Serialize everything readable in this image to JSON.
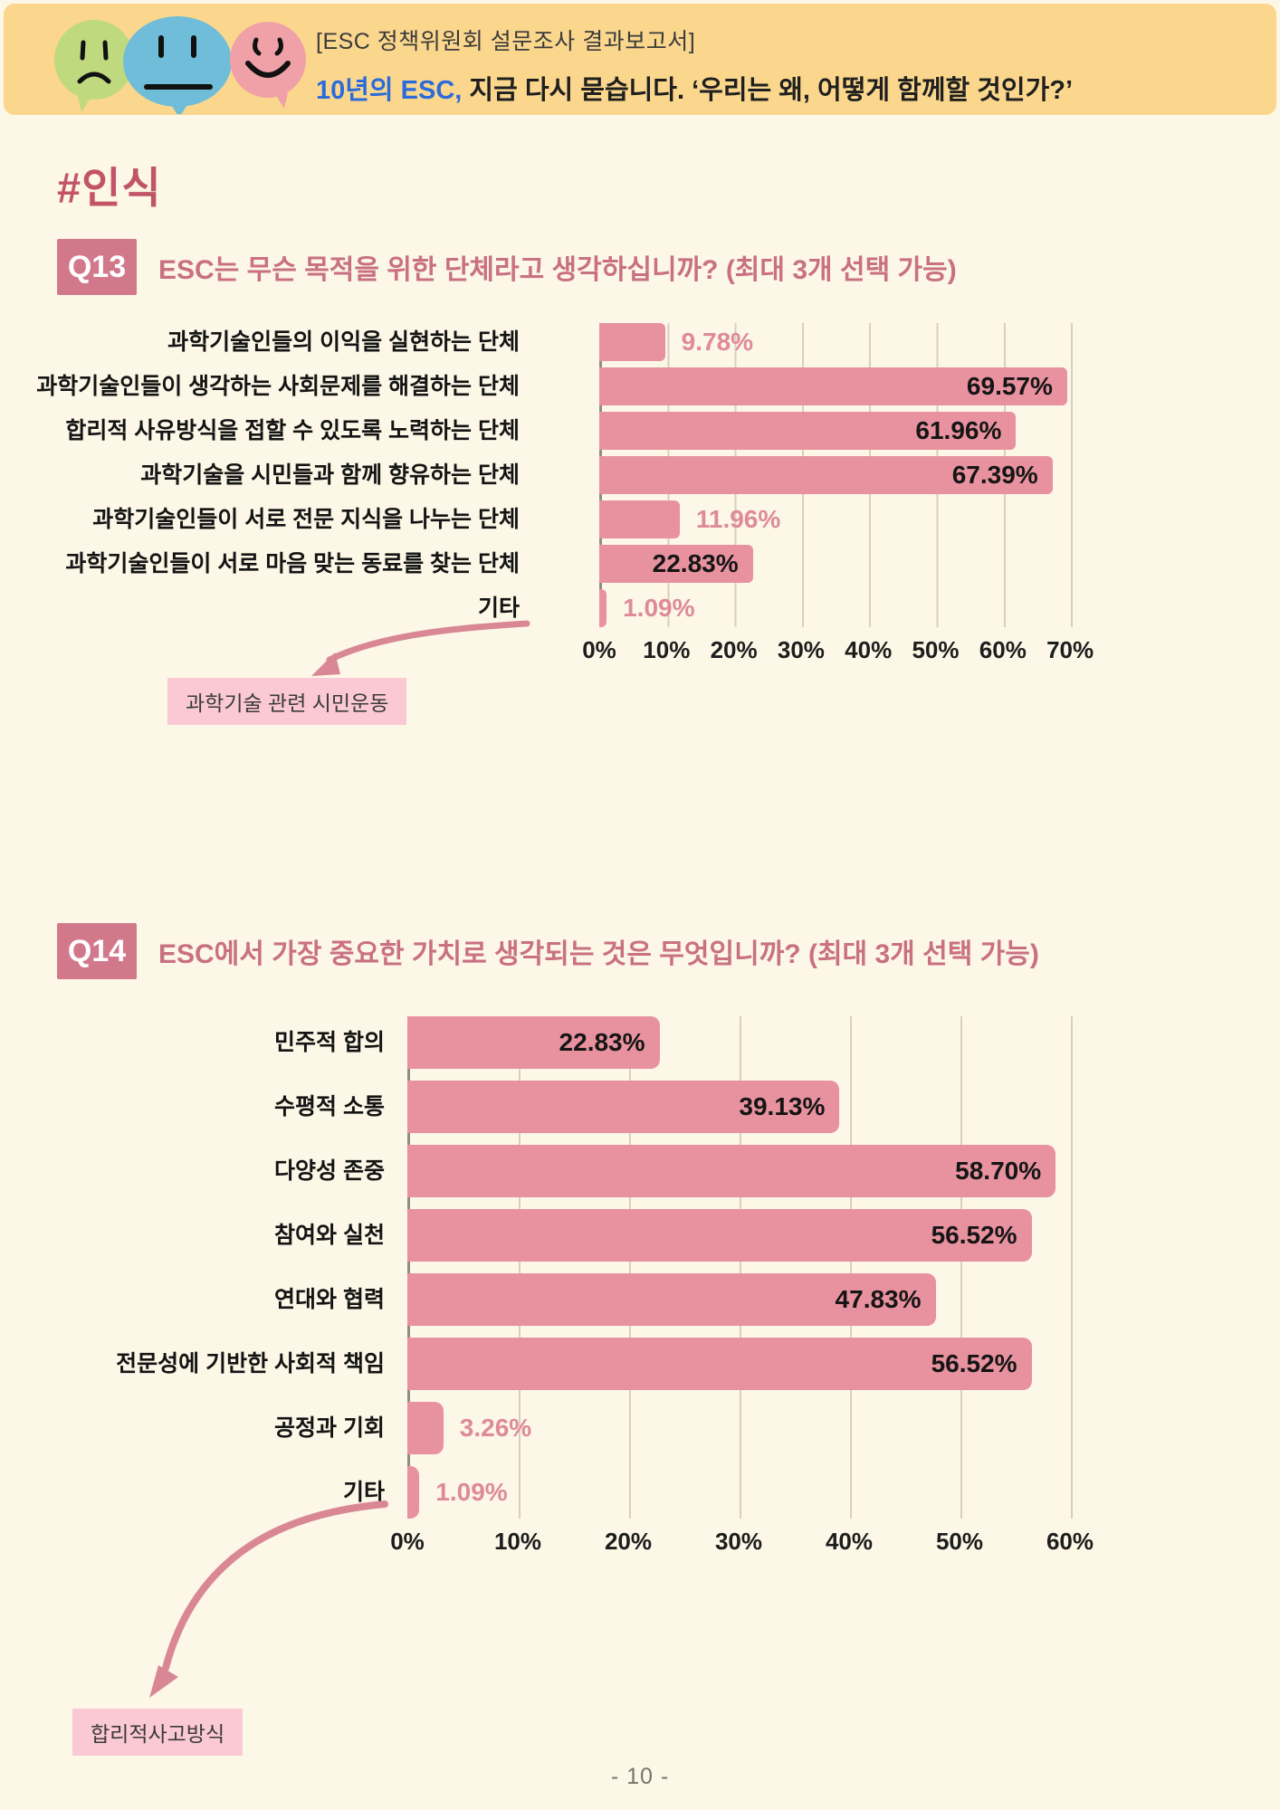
{
  "header": {
    "kicker": "[ESC 정책위원회 설문조사 결과보고서]",
    "title_highlight": "10년의 ESC,",
    "title_rest": " 지금 다시 묻습니다. ‘우리는 왜, 어떻게 함께할 것인가?’",
    "colors": {
      "band": "#FBD78D",
      "highlight": "#2B6BDA",
      "bubble_green": "#BFD97E",
      "bubble_blue": "#6FBDD8",
      "bubble_pink": "#F0A1A8"
    },
    "bubble_icons": [
      "sad-face-bubble",
      "neutral-face-bubble",
      "happy-face-bubble"
    ]
  },
  "section": {
    "heading": "#인식",
    "color": "#C25468"
  },
  "questions": [
    {
      "badge": "Q13",
      "text": "ESC는 무슨 목적을 위한 단체라고 생각하십니까? (최대 3개 선택 가능)",
      "other_note": "과학기술 관련 시민운동"
    },
    {
      "badge": "Q14",
      "text": "ESC에서 가장 중요한 가치로 생각되는 것은 무엇입니까? (최대 3개 선택 가능)",
      "other_note": "합리적사고방식"
    }
  ],
  "chart_data": [
    {
      "type": "bar",
      "orientation": "horizontal",
      "question": "Q13",
      "categories": [
        "과학기술인들의 이익을 실현하는 단체",
        "과학기술인들이 생각하는 사회문제를 해결하는 단체",
        "합리적 사유방식을 접할 수 있도록 노력하는 단체",
        "과학기술을 시민들과 함께 향유하는 단체",
        "과학기술인들이 서로 전문 지식을 나누는 단체",
        "과학기술인들이 서로 마음 맞는 동료를 찾는 단체",
        "기타"
      ],
      "values": [
        9.78,
        69.57,
        61.96,
        67.39,
        11.96,
        22.83,
        1.09
      ],
      "labels": [
        "9.78%",
        "69.57%",
        "61.96%",
        "67.39%",
        "11.96%",
        "22.83%",
        "1.09%"
      ],
      "label_inside": [
        false,
        true,
        true,
        true,
        false,
        true,
        false
      ],
      "ticks": [
        "0%",
        "10%",
        "20%",
        "30%",
        "40%",
        "50%",
        "60%",
        "70%"
      ],
      "xlim": [
        0,
        70
      ],
      "grid": true,
      "legend": "none",
      "bar_color": "#E8929F",
      "label_color_inside": "#151515",
      "label_color_outside": "#DE8A9A"
    },
    {
      "type": "bar",
      "orientation": "horizontal",
      "question": "Q14",
      "categories": [
        "민주적 합의",
        "수평적 소통",
        "다양성 존중",
        "참여와 실천",
        "연대와 협력",
        "전문성에 기반한 사회적 책임",
        "공정과 기회",
        "기타"
      ],
      "values": [
        22.83,
        39.13,
        58.7,
        56.52,
        47.83,
        56.52,
        3.26,
        1.09
      ],
      "labels": [
        "22.83%",
        "39.13%",
        "58.70%",
        "56.52%",
        "47.83%",
        "56.52%",
        "3.26%",
        "1.09%"
      ],
      "label_inside": [
        true,
        true,
        true,
        true,
        true,
        true,
        false,
        false
      ],
      "ticks": [
        "0%",
        "10%",
        "20%",
        "30%",
        "40%",
        "50%",
        "60%"
      ],
      "xlim": [
        0,
        60
      ],
      "grid": true,
      "legend": "none",
      "bar_color": "#E8929F",
      "label_color_inside": "#151515",
      "label_color_outside": "#DE8A9A"
    }
  ],
  "footer": {
    "page_number": "- 10 -"
  }
}
